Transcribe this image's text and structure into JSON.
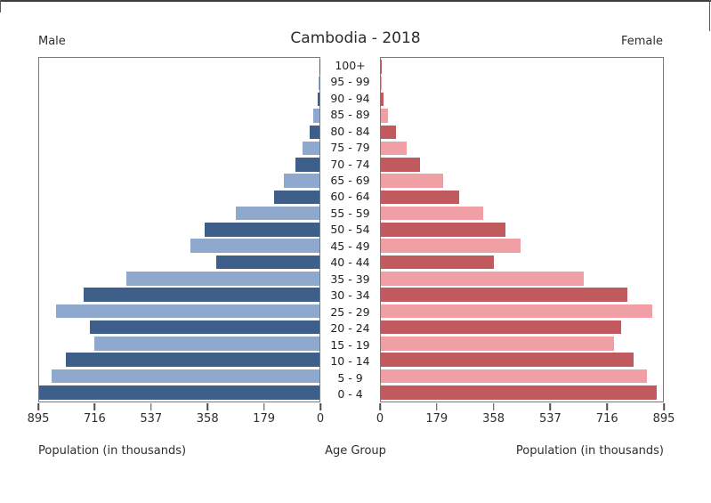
{
  "header": {
    "male_label": "Male",
    "title": "Cambodia - 2018",
    "female_label": "Female"
  },
  "footer": {
    "left_axis_label": "Population (in thousands)",
    "center_axis_label": "Age Group",
    "right_axis_label": "Population (in thousands)"
  },
  "colors": {
    "male_dark": "#3E5F8A",
    "male_light": "#8FA9CE",
    "female_dark": "#C05A5E",
    "female_light": "#F0A0A5",
    "frame": "#7A7A7A",
    "text": "#2E2E2E"
  },
  "chart_data": {
    "type": "bar",
    "subtype": "population-pyramid",
    "title": "Cambodia - 2018",
    "units": "thousands",
    "xlim": [
      0,
      895
    ],
    "ticks": [
      0,
      179,
      358,
      537,
      716,
      895
    ],
    "grid": false,
    "legend_position": "none",
    "categories": [
      "100+",
      "95 - 99",
      "90 - 94",
      "85 - 89",
      "80 - 84",
      "75 - 79",
      "70 - 74",
      "65 - 69",
      "60 - 64",
      "55 - 59",
      "50 - 54",
      "45 - 49",
      "40 - 44",
      "35 - 39",
      "30 - 34",
      "25 - 29",
      "20 - 24",
      "15 - 19",
      "10 - 14",
      "5 - 9",
      "0 - 4"
    ],
    "series": [
      {
        "name": "Male",
        "side": "left",
        "values": [
          1,
          3,
          6,
          20,
          30,
          54,
          78,
          113,
          145,
          268,
          367,
          412,
          330,
          616,
          752,
          840,
          734,
          720,
          810,
          856,
          895
        ]
      },
      {
        "name": "Female",
        "side": "right",
        "values": [
          2,
          4,
          9,
          22,
          47,
          83,
          125,
          198,
          249,
          326,
          394,
          443,
          358,
          643,
          781,
          860,
          762,
          739,
          803,
          843,
          876
        ]
      }
    ]
  }
}
